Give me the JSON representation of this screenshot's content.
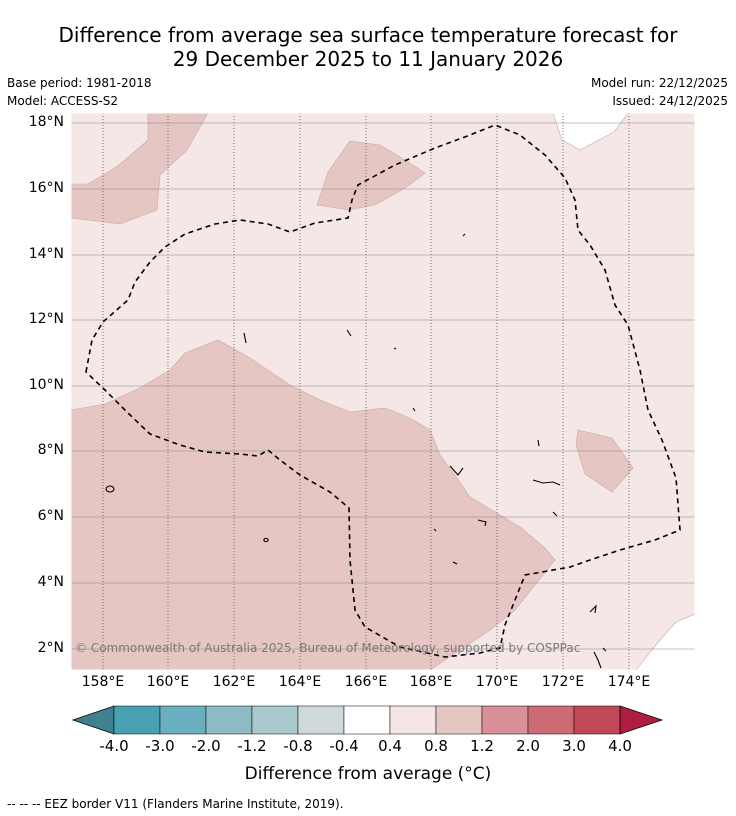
{
  "title_line1": "Difference from average sea surface temperature forecast for",
  "title_line2": "29 December 2025 to 11 January 2026",
  "base_period": "Base period: 1981-2018",
  "model": "Model: ACCESS-S2",
  "model_run": "Model run: 22/12/2025",
  "issued": "Issued: 24/12/2025",
  "lat_labels": [
    "18°N",
    "16°N",
    "14°N",
    "12°N",
    "10°N",
    "8°N",
    "6°N",
    "4°N",
    "2°N"
  ],
  "lon_labels": [
    "158°E",
    "160°E",
    "162°E",
    "164°E",
    "166°E",
    "168°E",
    "170°E",
    "172°E",
    "174°E"
  ],
  "copyright": "© Commonwealth of Australia 2025, Bureau of Meteorology, supported by COSPPac",
  "colorbar": {
    "title": "Difference from average (°C)",
    "tick_labels": [
      "-4.0",
      "-3.0",
      "-2.0",
      "-1.2",
      "-0.8",
      "-0.4",
      "0.4",
      "0.8",
      "1.2",
      "2.0",
      "3.0",
      "4.0"
    ],
    "under_color": "#3f818e",
    "colors": [
      "#48a1b3",
      "#6aafbf",
      "#8cbac5",
      "#a9c9cd",
      "#cfdadc",
      "#ffffff",
      "#f4e7e6",
      "#e6c6c2",
      "#d9909a",
      "#cd6b75",
      "#c04857"
    ],
    "over_color": "#b01e3f"
  },
  "legend_footer": "--  --  -- EEZ border V11 (Flanders Marine Institute, 2019).",
  "colors": {
    "background_anomaly": "#f4e7e6",
    "warm_anomaly": "#e6c6c2",
    "neutral": "#ffffff",
    "gridline": "#555555",
    "eez_border": "#000000"
  }
}
